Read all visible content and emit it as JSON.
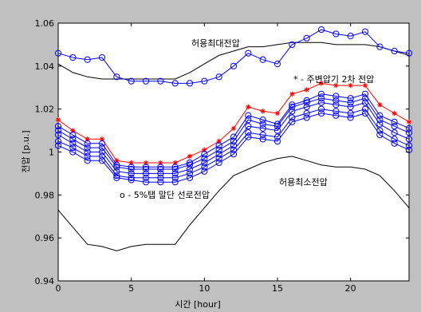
{
  "figure": {
    "background": "#c0c0c0"
  },
  "chart_data": {
    "type": "line",
    "title": "",
    "xlabel": "시간 [hour]",
    "ylabel": "전압 [p.u.]",
    "xlim": [
      0,
      24
    ],
    "ylim": [
      0.94,
      1.06
    ],
    "x_ticks": [
      0,
      5,
      10,
      15,
      20
    ],
    "y_ticks": [
      0.94,
      0.96,
      0.98,
      1,
      1.02,
      1.04,
      1.06
    ],
    "y_tick_labels": [
      "0.94",
      "0.96",
      "0.98",
      "1",
      "1.02",
      "1.04",
      "1.06"
    ],
    "grid": false,
    "annotations": {
      "upper_limit": "허용최대전압",
      "lower_limit": "허용최소전압",
      "star_series": "* - 주변압기 2차 전압",
      "circle_series": "o - 5%탭 말단 선로전압"
    },
    "x": [
      0,
      1,
      2,
      3,
      4,
      5,
      6,
      7,
      8,
      9,
      10,
      11,
      12,
      13,
      14,
      15,
      16,
      17,
      18,
      19,
      20,
      21,
      22,
      23,
      24
    ],
    "series": [
      {
        "role": "upper-limit",
        "color": "#000000",
        "marker": "none",
        "values": [
          1.041,
          1.037,
          1.035,
          1.034,
          1.034,
          1.034,
          1.034,
          1.034,
          1.034,
          1.037,
          1.041,
          1.045,
          1.047,
          1.049,
          1.049,
          1.05,
          1.051,
          1.051,
          1.051,
          1.05,
          1.05,
          1.05,
          1.049,
          1.047,
          1.045
        ]
      },
      {
        "role": "lower-limit",
        "color": "#000000",
        "marker": "none",
        "values": [
          0.973,
          0.965,
          0.957,
          0.956,
          0.954,
          0.956,
          0.957,
          0.957,
          0.957,
          0.966,
          0.974,
          0.982,
          0.989,
          0.992,
          0.995,
          0.997,
          0.998,
          0.996,
          0.994,
          0.993,
          0.993,
          0.992,
          0.989,
          0.982,
          0.974
        ]
      },
      {
        "role": "circle-upper",
        "color": "#0000ff",
        "marker": "circle",
        "values": [
          1.046,
          1.044,
          1.043,
          1.044,
          1.035,
          1.033,
          1.033,
          1.033,
          1.032,
          1.032,
          1.033,
          1.035,
          1.04,
          1.046,
          1.043,
          1.041,
          1.05,
          1.053,
          1.057,
          1.055,
          1.054,
          1.056,
          1.049,
          1.047,
          1.046
        ]
      },
      {
        "role": "star",
        "color": "#ff0000",
        "marker": "star",
        "values": [
          1.015,
          1.01,
          1.006,
          1.006,
          0.996,
          0.995,
          0.995,
          0.995,
          0.995,
          0.998,
          1.001,
          1.005,
          1.011,
          1.021,
          1.019,
          1.018,
          1.027,
          1.029,
          1.032,
          1.031,
          1.031,
          1.031,
          1.022,
          1.018,
          1.014
        ]
      },
      {
        "role": "circle-1",
        "color": "#0000ff",
        "marker": "circle",
        "values": [
          1.012,
          1.008,
          1.004,
          1.004,
          0.994,
          0.993,
          0.993,
          0.993,
          0.993,
          0.995,
          0.999,
          1.003,
          1.007,
          1.017,
          1.015,
          1.013,
          1.022,
          1.024,
          1.027,
          1.026,
          1.025,
          1.027,
          1.017,
          1.014,
          1.011
        ]
      },
      {
        "role": "circle-2",
        "color": "#0000ff",
        "marker": "circle",
        "values": [
          1.01,
          1.006,
          1.002,
          1.002,
          0.993,
          0.992,
          0.992,
          0.992,
          0.992,
          0.994,
          0.997,
          1.001,
          1.005,
          1.015,
          1.013,
          1.012,
          1.021,
          1.023,
          1.025,
          1.024,
          1.023,
          1.025,
          1.015,
          1.012,
          1.009
        ]
      },
      {
        "role": "circle-3",
        "color": "#0000ff",
        "marker": "circle",
        "values": [
          1.008,
          1.004,
          1.0,
          1.0,
          0.991,
          0.99,
          0.99,
          0.99,
          0.99,
          0.992,
          0.995,
          0.999,
          1.003,
          1.012,
          1.011,
          1.01,
          1.019,
          1.021,
          1.023,
          1.022,
          1.021,
          1.023,
          1.013,
          1.009,
          1.006
        ]
      },
      {
        "role": "circle-4",
        "color": "#0000ff",
        "marker": "circle",
        "values": [
          1.005,
          1.002,
          0.998,
          0.998,
          0.989,
          0.988,
          0.988,
          0.988,
          0.988,
          0.99,
          0.993,
          0.997,
          1.001,
          1.009,
          1.008,
          1.007,
          1.016,
          1.018,
          1.02,
          1.019,
          1.018,
          1.02,
          1.01,
          1.006,
          1.003
        ]
      },
      {
        "role": "circle-5",
        "color": "#0000ff",
        "marker": "circle",
        "values": [
          1.003,
          1.0,
          0.996,
          0.996,
          0.988,
          0.987,
          0.986,
          0.986,
          0.986,
          0.988,
          0.991,
          0.995,
          0.999,
          1.007,
          1.006,
          1.005,
          1.014,
          1.016,
          1.018,
          1.017,
          1.016,
          1.018,
          1.008,
          1.004,
          1.001
        ]
      }
    ]
  }
}
